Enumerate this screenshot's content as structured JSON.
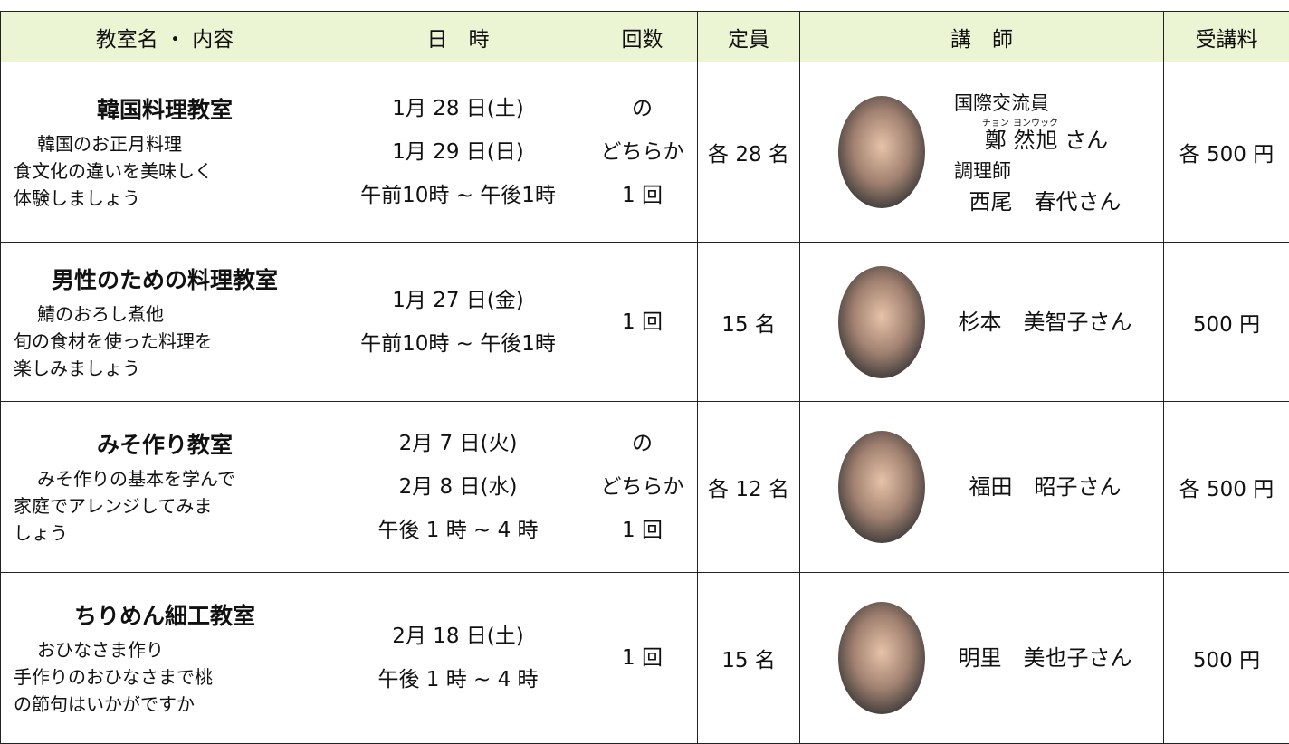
{
  "table": {
    "headers": [
      "教室名 ・ 内容",
      "日　時",
      "回数",
      "定員",
      "講　師",
      "受講料"
    ],
    "rows": [
      {
        "name": "韓国料理教室",
        "description": [
          "韓国のお正月料理",
          "食文化の違いを美味しく",
          "体験しましょう"
        ],
        "schedule": [
          "1月 28 日(土)",
          "1月 29 日(日)",
          "午前10時 ~ 午後1時"
        ],
        "count": [
          "の",
          "どちらか",
          "1 回"
        ],
        "capacity": "各 28 名",
        "instructors": [
          {
            "role": "国際交流員",
            "ruby": [
              {
                "base": "鄭",
                "rt": "チョン"
              },
              {
                "base": "然旭",
                "rt": "ヨンウック"
              }
            ],
            "suffix": "さん"
          },
          {
            "role": "調理師",
            "name": "西尾　春代さん"
          }
        ],
        "fee": "各 500 円"
      },
      {
        "name": "男性のための料理教室",
        "description": [
          "鯖のおろし煮他",
          "旬の食材を使った料理を",
          "楽しみましょう"
        ],
        "schedule": [
          "1月 27 日(金)",
          "午前10時 ~ 午後1時"
        ],
        "count": [
          "1 回"
        ],
        "capacity": "15 名",
        "instructors": [
          {
            "name": "杉本　美智子さん"
          }
        ],
        "fee": "500 円"
      },
      {
        "name": "みそ作り教室",
        "description": [
          "みそ作りの基本を学んで",
          "家庭でアレンジしてみま",
          "しょう"
        ],
        "schedule": [
          "2月 7 日(火)",
          "2月 8 日(水)",
          "午後 1 時 ~ 4 時"
        ],
        "count": [
          "の",
          "どちらか",
          "1 回"
        ],
        "capacity": "各 12 名",
        "instructors": [
          {
            "name": "福田　昭子さん"
          }
        ],
        "fee": "各 500 円"
      },
      {
        "name": "ちりめん細工教室",
        "description": [
          "おひなさま作り",
          "手作りのおひなさまで桃",
          "の節句はいかがですか"
        ],
        "schedule": [
          "2月 18 日(土)",
          "午後 1 時 ~ 4 時"
        ],
        "count": [
          "1 回"
        ],
        "capacity": "15 名",
        "instructors": [
          {
            "name": "明里　美也子さん"
          }
        ],
        "fee": "500 円"
      }
    ]
  }
}
